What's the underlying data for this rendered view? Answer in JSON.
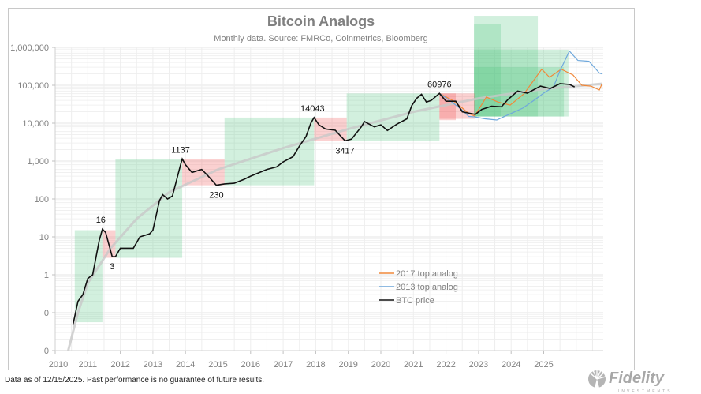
{
  "chart_data": {
    "type": "line",
    "title": "Bitcoin Analogs",
    "subtitle": "Monthly data.  Source: FMRCo, Coinmetrics, Bloomberg",
    "xlabel": "",
    "ylabel": "",
    "y_scale": "log",
    "ylim": [
      0.01,
      1000000
    ],
    "xlim": [
      2010,
      2026.8
    ],
    "grid": true,
    "legend_position": "lower-center",
    "y_tick_labels": [
      "0",
      "0",
      "1",
      "10",
      "100",
      "1,000",
      "10,000",
      "100,000",
      "1,000,000"
    ],
    "y_tick_values": [
      0.01,
      0.1,
      1,
      10,
      100,
      1000,
      10000,
      100000,
      1000000
    ],
    "x_tick_labels": [
      "2010",
      "2011",
      "2012",
      "2013",
      "2014",
      "2015",
      "2016",
      "2017",
      "2018",
      "2019",
      "2020",
      "2021",
      "2022",
      "2023",
      "2024",
      "2025"
    ],
    "series": [
      {
        "name": "2017 top analog",
        "color": "#f0883a",
        "x": [
          2021.8,
          2022.2,
          2022.5,
          2022.7,
          2022.88,
          2023.24,
          2023.6,
          2023.97,
          2024.4,
          2024.94,
          2025.18,
          2025.54,
          2025.9,
          2026.17,
          2026.45,
          2026.71,
          2026.78
        ],
        "y": [
          60976,
          40000,
          25000,
          18000,
          15400,
          49000,
          36000,
          30000,
          60000,
          265000,
          162000,
          265000,
          187000,
          100000,
          95000,
          75000,
          105000
        ]
      },
      {
        "name": "2013 top analog",
        "color": "#6fa8dc",
        "x": [
          2021.8,
          2022.2,
          2022.5,
          2022.7,
          2022.88,
          2023.2,
          2023.56,
          2024.0,
          2024.36,
          2024.7,
          2025.01,
          2025.3,
          2025.5,
          2025.79,
          2026.05,
          2026.39,
          2026.71,
          2026.78
        ],
        "y": [
          60976,
          35000,
          22000,
          15000,
          14700,
          13000,
          12100,
          18000,
          25000,
          40000,
          63000,
          90000,
          240000,
          800000,
          450000,
          430000,
          210000,
          200000
        ]
      },
      {
        "name": "BTC price",
        "color": "#111111",
        "x": [
          2010.55,
          2010.7,
          2010.85,
          2011.0,
          2011.15,
          2011.35,
          2011.45,
          2011.55,
          2011.75,
          2011.85,
          2012.0,
          2012.2,
          2012.4,
          2012.6,
          2012.9,
          2013.0,
          2013.2,
          2013.3,
          2013.45,
          2013.6,
          2013.85,
          2013.9,
          2014.0,
          2014.2,
          2014.5,
          2014.7,
          2014.95,
          2015.2,
          2015.5,
          2015.8,
          2016.0,
          2016.5,
          2016.8,
          2017.0,
          2017.3,
          2017.5,
          2017.7,
          2017.85,
          2017.95,
          2018.1,
          2018.3,
          2018.6,
          2018.9,
          2019.1,
          2019.4,
          2019.5,
          2019.8,
          2020.0,
          2020.2,
          2020.5,
          2020.8,
          2020.95,
          2021.1,
          2021.25,
          2021.4,
          2021.55,
          2021.8,
          2022.0,
          2022.3,
          2022.5,
          2022.9,
          2023.1,
          2023.4,
          2023.7,
          2023.9,
          2024.2,
          2024.5,
          2024.9,
          2025.2,
          2025.5,
          2025.8,
          2025.95
        ],
        "y": [
          0.05,
          0.2,
          0.3,
          0.8,
          1,
          8,
          16,
          13,
          3,
          3,
          5,
          5,
          5,
          10,
          12,
          15,
          90,
          130,
          100,
          120,
          800,
          1137,
          800,
          500,
          600,
          400,
          230,
          250,
          260,
          330,
          400,
          600,
          700,
          950,
          1300,
          2500,
          4400,
          10000,
          14043,
          9000,
          7000,
          6500,
          3417,
          3800,
          8000,
          11000,
          8000,
          9000,
          6400,
          9500,
          13000,
          29000,
          45000,
          58000,
          36000,
          40000,
          60976,
          38000,
          38000,
          20000,
          17000,
          23000,
          28000,
          27000,
          42000,
          70000,
          62000,
          95000,
          82000,
          110000,
          105000,
          90000
        ]
      }
    ],
    "trend": {
      "color": "#c8c8c8",
      "x": [
        2010.4,
        2010.7,
        2011.0,
        2011.7,
        2012.5,
        2013.5,
        2015.0,
        2017.0,
        2019.0,
        2021.0,
        2023.0,
        2025.0,
        2026.8
      ],
      "y": [
        0.01,
        0.1,
        0.6,
        5,
        30,
        150,
        600,
        2200,
        7000,
        20000,
        45000,
        80000,
        110000
      ]
    },
    "up_boxes": [
      {
        "x0": 2010.6,
        "x1": 2011.45,
        "y0": 0.056,
        "y1": 15
      },
      {
        "x0": 2011.85,
        "x1": 2013.9,
        "y0": 2.8,
        "y1": 1137
      },
      {
        "x0": 2015.2,
        "x1": 2017.95,
        "y0": 230,
        "y1": 14043
      },
      {
        "x0": 2018.95,
        "x1": 2021.8,
        "y0": 3417,
        "y1": 60976
      },
      {
        "x0": 2022.86,
        "x1": 2024.82,
        "y0": 15000,
        "y1": 6800000
      },
      {
        "x0": 2022.86,
        "x1": 2023.68,
        "y0": 15000,
        "y1": 4200000
      },
      {
        "x0": 2022.86,
        "x1": 2025.76,
        "y0": 15000,
        "y1": 870000
      },
      {
        "x0": 2022.86,
        "x1": 2025.62,
        "y0": 15000,
        "y1": 300000
      }
    ],
    "down_boxes": [
      {
        "x0": 2011.45,
        "x1": 2011.85,
        "y0": 2.8,
        "y1": 15
      },
      {
        "x0": 2013.9,
        "x1": 2015.2,
        "y0": 230,
        "y1": 1137
      },
      {
        "x0": 2017.95,
        "x1": 2018.95,
        "y0": 3417,
        "y1": 14043
      },
      {
        "x0": 2021.8,
        "x1": 2022.9,
        "y0": 13000,
        "y1": 60976
      },
      {
        "x0": 2021.8,
        "x1": 2022.3,
        "y0": 12000,
        "y1": 60976
      }
    ],
    "up_color": "#4cc47a",
    "down_color": "#f04848",
    "annotations": [
      {
        "text": "16",
        "x": 2011.4,
        "y": 16,
        "pos": "above"
      },
      {
        "text": "3",
        "x": 2011.75,
        "y": 3,
        "pos": "below"
      },
      {
        "text": "1137",
        "x": 2013.85,
        "y": 1137,
        "pos": "above"
      },
      {
        "text": "230",
        "x": 2014.95,
        "y": 230,
        "pos": "below"
      },
      {
        "text": "14043",
        "x": 2017.9,
        "y": 14043,
        "pos": "above"
      },
      {
        "text": "3417",
        "x": 2018.9,
        "y": 3417,
        "pos": "below"
      },
      {
        "text": "60976",
        "x": 2021.8,
        "y": 60976,
        "pos": "above"
      }
    ]
  },
  "footer": "Data as of 12/15/2025. Past performance is no guarantee of future results.",
  "logo": {
    "text": "Fidelity",
    "subtext": "INVESTMENTS"
  }
}
